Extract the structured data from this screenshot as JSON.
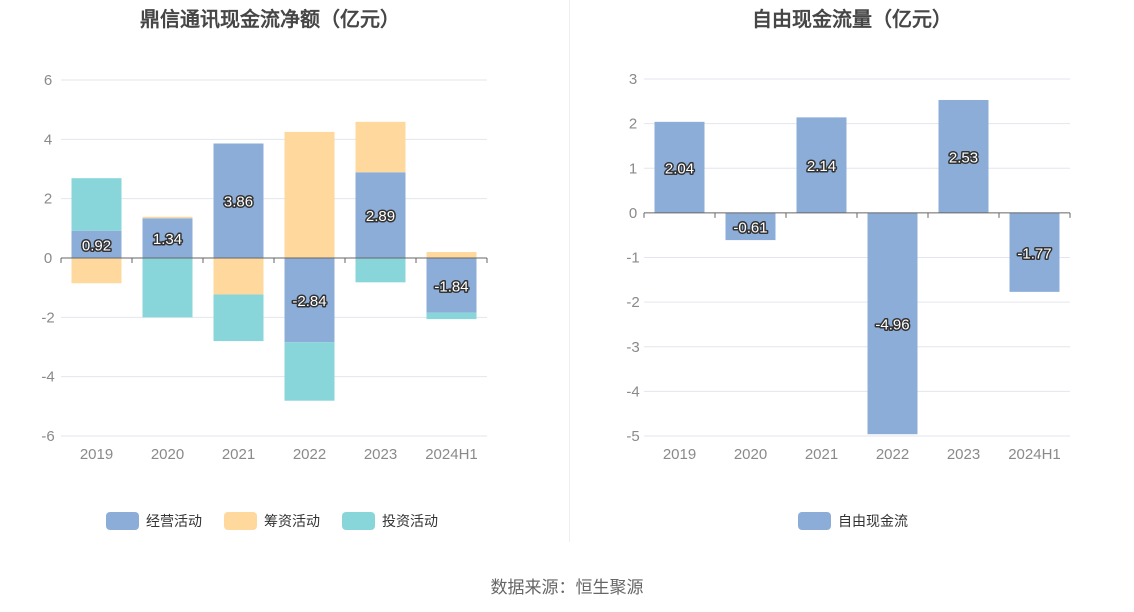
{
  "source": "数据来源：恒生聚源",
  "chart_data": [
    {
      "type": "bar",
      "stacked": true,
      "title": "鼎信通讯现金流净额（亿元）",
      "categories": [
        "2019",
        "2020",
        "2021",
        "2022",
        "2023",
        "2024H1"
      ],
      "ylim": [
        -6,
        6
      ],
      "yticks": [
        6,
        4,
        2,
        0,
        -2,
        -4,
        -6
      ],
      "legend_position": "bottom",
      "series": [
        {
          "name": "经营活动",
          "color": "#8dadd9",
          "values": [
            0.92,
            1.34,
            3.86,
            -2.84,
            2.89,
            -1.84
          ],
          "labels": [
            "0.92",
            "1.34",
            "3.86",
            "-2.84",
            "2.89",
            "-1.84"
          ]
        },
        {
          "name": "筹资活动",
          "color": "#fed89d",
          "values": [
            -0.85,
            0.05,
            -1.23,
            4.25,
            1.7,
            0.2
          ]
        },
        {
          "name": "投资活动",
          "color": "#88d6da",
          "values": [
            1.77,
            -2.0,
            -1.57,
            -1.97,
            -0.82,
            -0.22
          ]
        }
      ]
    },
    {
      "type": "bar",
      "title": "自由现金流量（亿元）",
      "categories": [
        "2019",
        "2020",
        "2021",
        "2022",
        "2023",
        "2024H1"
      ],
      "ylim": [
        -5,
        3
      ],
      "yticks": [
        3,
        2,
        1,
        0,
        -1,
        -2,
        -3,
        -4,
        -5
      ],
      "legend_position": "bottom",
      "series": [
        {
          "name": "自由现金流",
          "color": "#8dadd9",
          "values": [
            2.04,
            -0.61,
            2.14,
            -4.96,
            2.53,
            -1.77
          ],
          "labels": [
            "2.04",
            "-0.61",
            "2.14",
            "-4.96",
            "2.53",
            "-1.77"
          ]
        }
      ]
    }
  ]
}
